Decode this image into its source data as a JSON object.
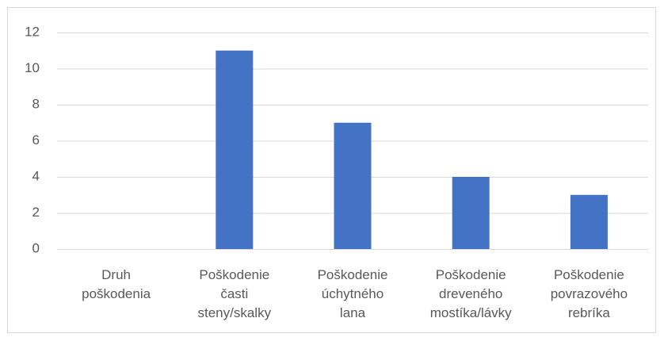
{
  "chart_data": {
    "type": "bar",
    "categories": [
      "Druh poškodenia",
      "Poškodenie časti steny/skalky",
      "Poškodenie úchytného lana",
      "Poškodenie dreveného mostíka/lávky",
      "Poškodenie povrazového rebríka"
    ],
    "values": [
      null,
      11,
      7,
      4,
      3
    ],
    "color": "#4472c4",
    "ylim": [
      0,
      12
    ],
    "yticks": [
      0,
      2,
      4,
      6,
      8,
      10,
      12
    ],
    "grid": true
  }
}
